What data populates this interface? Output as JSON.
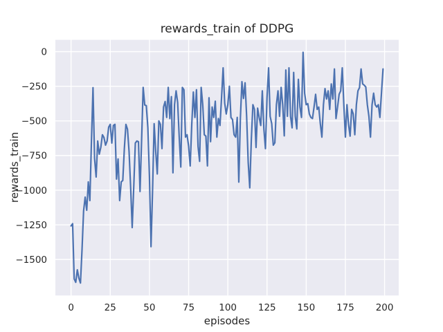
{
  "chart_data": {
    "type": "line",
    "title": "rewards_train of DDPG",
    "xlabel": "episodes",
    "ylabel": "rewards_train",
    "grid": true,
    "legend": false,
    "style": "seaborn-darkgrid",
    "plot_bg": "#eaeaf2",
    "grid_color": "#ffffff",
    "text_color": "#262626",
    "line_color": "#4c72b0",
    "xlim": [
      -10,
      209
    ],
    "ylim": [
      -1760,
      85
    ],
    "x_ticks": [
      0,
      25,
      50,
      75,
      100,
      125,
      150,
      175,
      200
    ],
    "x_tick_labels": [
      "0",
      "25",
      "50",
      "75",
      "100",
      "125",
      "150",
      "175",
      "200"
    ],
    "y_ticks": [
      0,
      -250,
      -500,
      -750,
      -1000,
      -1250,
      -1500
    ],
    "y_tick_labels": [
      "0",
      "−250",
      "−500",
      "−750",
      "−1000",
      "−1250",
      "−1500"
    ],
    "series": [
      {
        "name": "rewards_train",
        "x_start": 0,
        "x_step": 1,
        "values": [
          -1258,
          -1242,
          -1640,
          -1665,
          -1575,
          -1635,
          -1670,
          -1430,
          -1150,
          -1050,
          -1145,
          -940,
          -1075,
          -650,
          -260,
          -770,
          -905,
          -645,
          -740,
          -690,
          -600,
          -620,
          -675,
          -645,
          -545,
          -525,
          -660,
          -533,
          -525,
          -920,
          -775,
          -1075,
          -940,
          -930,
          -700,
          -525,
          -560,
          -720,
          -975,
          -1270,
          -975,
          -660,
          -645,
          -650,
          -1010,
          -640,
          -258,
          -385,
          -390,
          -550,
          -900,
          -1408,
          -1000,
          -520,
          -720,
          -883,
          -500,
          -525,
          -700,
          -400,
          -360,
          -475,
          -258,
          -483,
          -325,
          -875,
          -383,
          -283,
          -367,
          -617,
          -833,
          -258,
          -275,
          -617,
          -600,
          -683,
          -825,
          -525,
          -292,
          -475,
          -275,
          -683,
          -792,
          -258,
          -383,
          -600,
          -610,
          -825,
          -333,
          -650,
          -400,
          -475,
          -358,
          -617,
          -483,
          -533,
          -333,
          -117,
          -372,
          -450,
          -383,
          -250,
          -475,
          -490,
          -600,
          -617,
          -475,
          -942,
          -483,
          -217,
          -338,
          -225,
          -467,
          -800,
          -983,
          -633,
          -383,
          -417,
          -692,
          -408,
          -475,
          -533,
          -283,
          -558,
          -700,
          -333,
          -117,
          -467,
          -520,
          -675,
          -658,
          -383,
          -283,
          -467,
          -258,
          -383,
          -608,
          -133,
          -467,
          -117,
          -467,
          -550,
          -150,
          -467,
          -558,
          -200,
          -400,
          -475,
          -5,
          -300,
          -383,
          -375,
          -450,
          -475,
          -483,
          -400,
          -308,
          -417,
          -400,
          -520,
          -617,
          -383,
          -267,
          -342,
          -283,
          -417,
          -233,
          -342,
          -125,
          -483,
          -400,
          -308,
          -283,
          -117,
          -383,
          -617,
          -383,
          -525,
          -610,
          -417,
          -450,
          -600,
          -383,
          -283,
          -260,
          -125,
          -233,
          -242,
          -255,
          -383,
          -467,
          -617,
          -383,
          -300,
          -383,
          -400,
          -383,
          -475,
          -300,
          -125
        ]
      }
    ]
  }
}
